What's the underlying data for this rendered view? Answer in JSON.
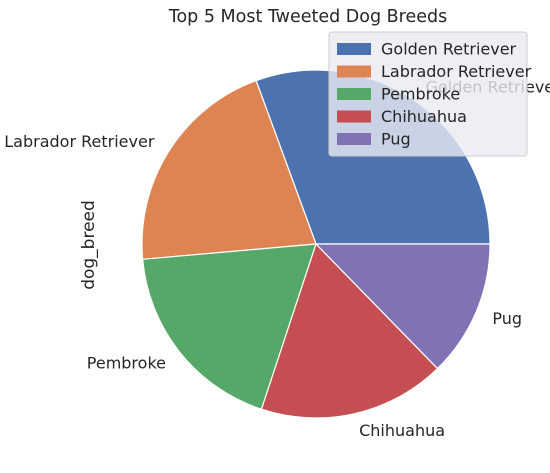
{
  "chart_data": {
    "type": "pie",
    "title": "Top 5 Most Tweeted Dog Breeds",
    "ylabel": "dog_breed",
    "start_angle_deg": 0,
    "direction": "counterclockwise",
    "slices": [
      {
        "label": "Golden Retriever",
        "value": 29.4,
        "color": "#4C72B0"
      },
      {
        "label": "Labrador Retriever",
        "value": 20.0,
        "color": "#DD8452"
      },
      {
        "label": "Pembroke",
        "value": 17.8,
        "color": "#55A868"
      },
      {
        "label": "Chihuahua",
        "value": 16.7,
        "color": "#C44E52"
      },
      {
        "label": "Pug",
        "value": 12.2,
        "color": "#8172B3"
      }
    ],
    "legend": {
      "placement": "upper-right",
      "entries": [
        "Golden Retriever",
        "Labrador Retriever",
        "Pembroke",
        "Chihuahua",
        "Pug"
      ]
    }
  }
}
